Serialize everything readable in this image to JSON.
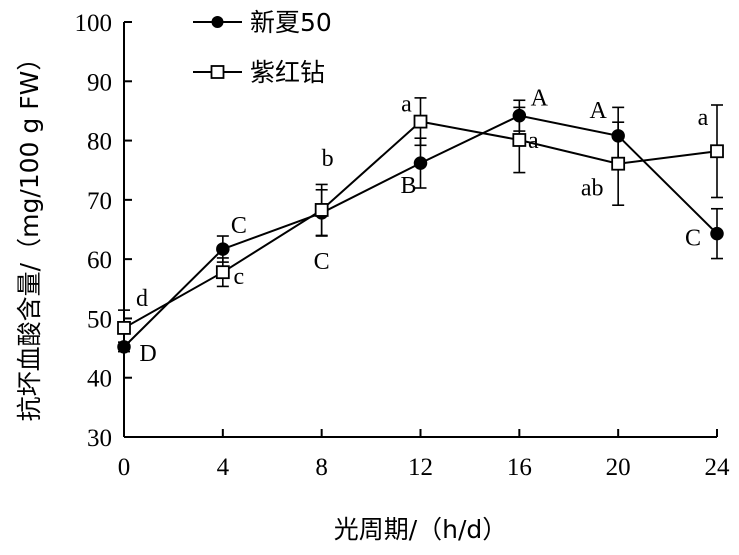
{
  "chart_data": {
    "type": "line",
    "xlabel": "光周期/（h/d）",
    "ylabel": "抗坏血酸含量/（mg/100 g FW）",
    "x": [
      0,
      4,
      8,
      12,
      16,
      20,
      24
    ],
    "xticks": [
      "0",
      "4",
      "8",
      "12",
      "16",
      "20",
      "24"
    ],
    "yticks": [
      "30",
      "40",
      "50",
      "60",
      "70",
      "80",
      "90",
      "100"
    ],
    "xlim": [
      0,
      24
    ],
    "ylim": [
      30,
      100
    ],
    "grid": false,
    "legend_position": "top-left",
    "series": [
      {
        "name": "新夏50",
        "marker": "filled-circle",
        "color": "#000000",
        "values": [
          45.2,
          61.7,
          67.8,
          76.2,
          84.2,
          80.8,
          64.3
        ],
        "errors": [
          0.8,
          2.2,
          3.9,
          4.2,
          2.6,
          4.8,
          4.2
        ],
        "labels": [
          "D",
          "C",
          "C",
          "B",
          "A",
          "A",
          "C"
        ]
      },
      {
        "name": "紫红钻",
        "marker": "open-square",
        "color": "#000000",
        "values": [
          48.4,
          57.8,
          68.3,
          83.2,
          80.1,
          76.1,
          78.2
        ],
        "errors": [
          3.0,
          2.4,
          4.3,
          4.0,
          5.5,
          7.0,
          7.8
        ],
        "labels": [
          "d",
          "c",
          "b",
          "a",
          "a",
          "ab",
          "a"
        ]
      }
    ]
  }
}
